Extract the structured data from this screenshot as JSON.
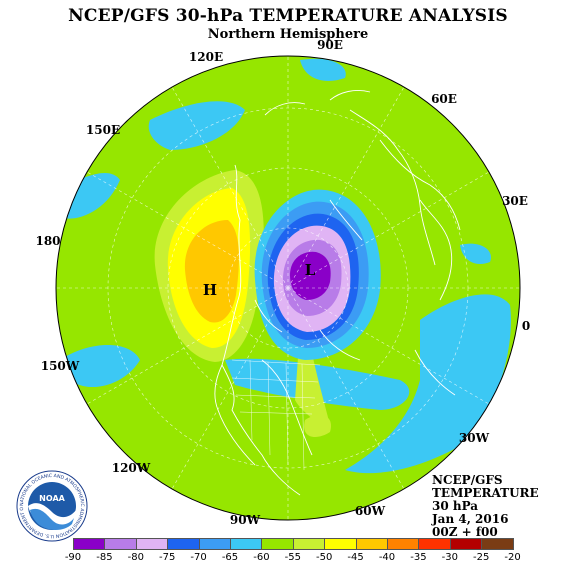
{
  "header": {
    "title": "NCEP/GFS 30-hPa TEMPERATURE ANALYSIS",
    "subtitle": "Northern Hemisphere"
  },
  "longitude_labels": [
    "90E",
    "60E",
    "30E",
    "0",
    "30W",
    "60W",
    "90W",
    "120W",
    "150W",
    "180",
    "150E",
    "120E"
  ],
  "centers": {
    "high": "H",
    "low": "L"
  },
  "info": {
    "line1": "NCEP/GFS",
    "line2": "TEMPERATURE",
    "line3": "30 hPa",
    "line4": "Jan 4, 2016",
    "line5": "00Z + f00"
  },
  "logo": {
    "text": "NOAA",
    "ring_text": "NATIONAL OCEANIC AND ATMOSPHERIC ADMINISTRATION U.S. DEPARTMENT OF COMMERCE"
  },
  "colorbar": {
    "ticks": [
      "-90",
      "-85",
      "-80",
      "-75",
      "-70",
      "-65",
      "-60",
      "-55",
      "-50",
      "-45",
      "-40",
      "-35",
      "-30",
      "-25",
      "-20"
    ],
    "colors": [
      "#8a00c8",
      "#b87ce8",
      "#e0b4f4",
      "#1e64f0",
      "#3c9cf4",
      "#3cc8f4",
      "#96e600",
      "#c8f032",
      "#ffff00",
      "#ffc800",
      "#ff8200",
      "#ff3200",
      "#b40000",
      "#7a3c14"
    ]
  },
  "colors": {
    "background_field": "#96e600",
    "cold_core": "#8a00c8",
    "warm_core": "#ffc800"
  }
}
